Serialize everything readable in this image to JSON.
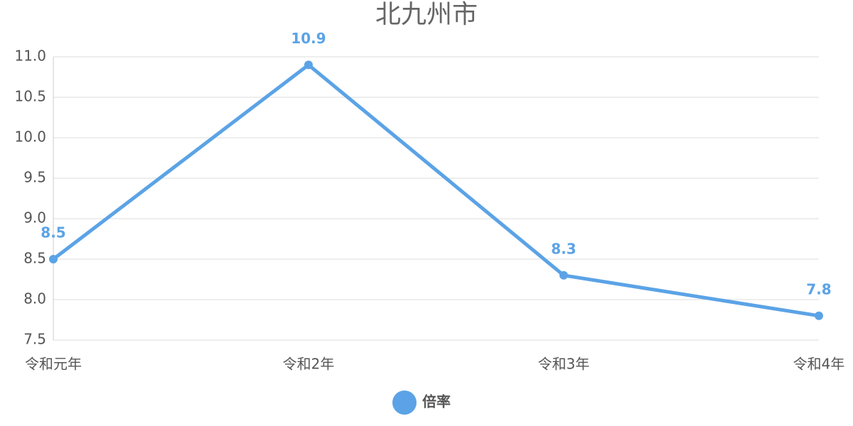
{
  "chart_data": {
    "type": "line",
    "title": "北九州市",
    "categories": [
      "令和元年",
      "令和2年",
      "令和3年",
      "令和4年"
    ],
    "series": [
      {
        "name": "倍率",
        "color": "#5ba3e6",
        "values": [
          8.5,
          10.9,
          8.3,
          7.8
        ]
      }
    ],
    "ylim": [
      7.5,
      11
    ],
    "yticks": [
      7.5,
      {
        "value": 8,
        "label": "8.0"
      },
      8.5,
      {
        "value": 9,
        "label": "9.0"
      },
      9.5,
      {
        "value": 10,
        "label": "10.0"
      },
      10.5,
      {
        "value": 11,
        "label": "11.0"
      }
    ],
    "grid": true,
    "legend": "bottom"
  }
}
